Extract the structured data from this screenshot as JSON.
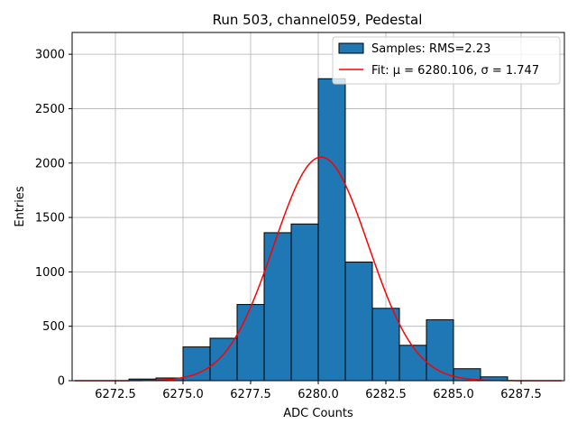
{
  "chart_data": {
    "type": "bar",
    "title": "Run 503, channel059, Pedestal",
    "xlabel": "ADC Counts",
    "ylabel": "Entries",
    "xlim": [
      6270.9,
      6289.1
    ],
    "ylim": [
      0,
      3200
    ],
    "xticks": [
      6272.5,
      6275.0,
      6277.5,
      6280.0,
      6282.5,
      6285.0,
      6287.5
    ],
    "yticks": [
      0,
      500,
      1000,
      1500,
      2000,
      2500,
      3000
    ],
    "grid": true,
    "legend_position": "top-right",
    "histogram": {
      "name": "Samples: RMS=2.23",
      "color": "#1f77b4",
      "edge_color": "#000000",
      "bins": [
        {
          "x0": 6273,
          "x1": 6274,
          "count": 15
        },
        {
          "x0": 6274,
          "x1": 6275,
          "count": 25
        },
        {
          "x0": 6275,
          "x1": 6276,
          "count": 310
        },
        {
          "x0": 6276,
          "x1": 6277,
          "count": 390
        },
        {
          "x0": 6277,
          "x1": 6278,
          "count": 700
        },
        {
          "x0": 6278,
          "x1": 6279,
          "count": 1360
        },
        {
          "x0": 6279,
          "x1": 6280,
          "count": 1440
        },
        {
          "x0": 6280,
          "x1": 6281,
          "count": 2775
        },
        {
          "x0": 6281,
          "x1": 6282,
          "count": 1090
        },
        {
          "x0": 6282,
          "x1": 6283,
          "count": 665
        },
        {
          "x0": 6283,
          "x1": 6284,
          "count": 325
        },
        {
          "x0": 6284,
          "x1": 6285,
          "count": 560
        },
        {
          "x0": 6285,
          "x1": 6286,
          "count": 110
        },
        {
          "x0": 6286,
          "x1": 6287,
          "count": 35
        }
      ]
    },
    "fit": {
      "name": "Fit: μ = 6280.106, σ = 1.747",
      "color": "#ff0000",
      "mu": 6280.106,
      "sigma": 1.747,
      "amplitude": 2055,
      "x_range": [
        6271,
        6289
      ]
    }
  }
}
